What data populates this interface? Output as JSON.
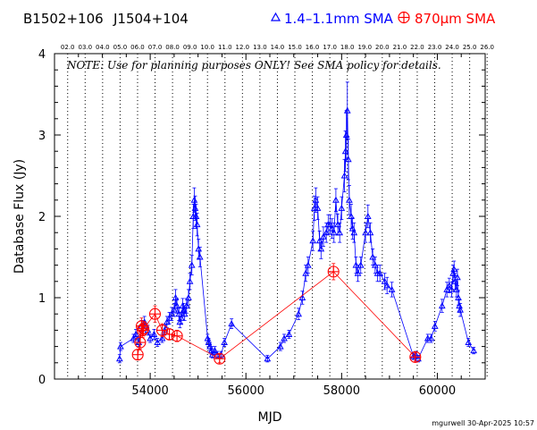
{
  "header": {
    "source_name": "B1502+106",
    "alt_name": "J1504+104",
    "legend": [
      {
        "label": "1.4–1.1mm SMA",
        "color": "#0000ff",
        "marker": "triangle"
      },
      {
        "label": "870μm SMA",
        "color": "#ff0000",
        "marker": "circle-plus"
      }
    ]
  },
  "note": "NOTE: Use for planning purposes ONLY! See SMA policy for details.",
  "footer": "mgurwell 30-Apr-2025 10:57",
  "chart_data": {
    "type": "scatter",
    "xlabel": "MJD",
    "ylabel": "Database Flux (Jy)",
    "xlim": [
      52000,
      61000
    ],
    "ylim": [
      0,
      4
    ],
    "x_ticks": [
      54000,
      56000,
      58000,
      60000
    ],
    "y_ticks": [
      0,
      1,
      2,
      3,
      4
    ],
    "top_axis_labels": [
      "02.0",
      "03.0",
      "04.0",
      "05.0",
      "06.0",
      "07.0",
      "08.0",
      "09.0",
      "10.0",
      "11.0",
      "12.0",
      "13.0",
      "14.0",
      "15.0",
      "16.0",
      "17.0",
      "18.0",
      "19.0",
      "20.0",
      "21.0",
      "22.0",
      "23.0",
      "24.0",
      "25.0",
      "26.0"
    ],
    "top_axis_start_mjd": 52275,
    "top_axis_step_days": 365.25,
    "grid": "vertical dotted lines at year boundaries",
    "series": [
      {
        "name": "1.4–1.1mm SMA",
        "color": "#0000ff",
        "marker": "triangle",
        "points": [
          [
            53360,
            0.25,
            0.05
          ],
          [
            53380,
            0.4,
            0.05
          ],
          [
            53650,
            0.5,
            0.05
          ],
          [
            53700,
            0.55,
            0.06
          ],
          [
            53760,
            0.45,
            0.05
          ],
          [
            53820,
            0.65,
            0.07
          ],
          [
            53880,
            0.7,
            0.07
          ],
          [
            53950,
            0.6,
            0.06
          ],
          [
            54000,
            0.5,
            0.05
          ],
          [
            54080,
            0.55,
            0.06
          ],
          [
            54150,
            0.45,
            0.05
          ],
          [
            54250,
            0.5,
            0.05
          ],
          [
            54300,
            0.6,
            0.06
          ],
          [
            54350,
            0.7,
            0.07
          ],
          [
            54400,
            0.75,
            0.07
          ],
          [
            54450,
            0.8,
            0.08
          ],
          [
            54500,
            0.85,
            0.08
          ],
          [
            54530,
            1.0,
            0.1
          ],
          [
            54560,
            0.9,
            0.09
          ],
          [
            54600,
            0.8,
            0.08
          ],
          [
            54620,
            0.7,
            0.07
          ],
          [
            54650,
            0.75,
            0.07
          ],
          [
            54680,
            0.9,
            0.09
          ],
          [
            54700,
            0.85,
            0.08
          ],
          [
            54720,
            0.8,
            0.08
          ],
          [
            54760,
            0.9,
            0.09
          ],
          [
            54800,
            1.0,
            0.1
          ],
          [
            54830,
            1.2,
            0.1
          ],
          [
            54870,
            1.4,
            0.12
          ],
          [
            54900,
            2.0,
            0.15
          ],
          [
            54920,
            2.2,
            0.15
          ],
          [
            54940,
            2.1,
            0.15
          ],
          [
            54960,
            2.0,
            0.15
          ],
          [
            54980,
            1.9,
            0.14
          ],
          [
            55010,
            1.6,
            0.12
          ],
          [
            55040,
            1.5,
            0.12
          ],
          [
            55200,
            0.5,
            0.05
          ],
          [
            55220,
            0.45,
            0.05
          ],
          [
            55250,
            0.4,
            0.05
          ],
          [
            55280,
            0.35,
            0.05
          ],
          [
            55300,
            0.3,
            0.04
          ],
          [
            55350,
            0.35,
            0.05
          ],
          [
            55400,
            0.3,
            0.04
          ],
          [
            55480,
            0.3,
            0.04
          ],
          [
            55550,
            0.45,
            0.05
          ],
          [
            55700,
            0.68,
            0.06
          ],
          [
            56450,
            0.25,
            0.04
          ],
          [
            56720,
            0.4,
            0.05
          ],
          [
            56800,
            0.5,
            0.05
          ],
          [
            56900,
            0.55,
            0.05
          ],
          [
            57100,
            0.8,
            0.07
          ],
          [
            57180,
            1.0,
            0.08
          ],
          [
            57250,
            1.3,
            0.1
          ],
          [
            57300,
            1.4,
            0.1
          ],
          [
            57400,
            1.7,
            0.12
          ],
          [
            57430,
            2.1,
            0.15
          ],
          [
            57460,
            2.2,
            0.15
          ],
          [
            57500,
            2.1,
            0.14
          ],
          [
            57540,
            1.7,
            0.12
          ],
          [
            57570,
            1.6,
            0.12
          ],
          [
            57620,
            1.75,
            0.12
          ],
          [
            57680,
            1.8,
            0.12
          ],
          [
            57720,
            1.9,
            0.12
          ],
          [
            57760,
            1.9,
            0.12
          ],
          [
            57800,
            1.85,
            0.12
          ],
          [
            57840,
            1.8,
            0.12
          ],
          [
            57880,
            2.2,
            0.14
          ],
          [
            57920,
            1.9,
            0.13
          ],
          [
            57960,
            1.8,
            0.12
          ],
          [
            58000,
            2.1,
            0.14
          ],
          [
            58060,
            2.5,
            0.2
          ],
          [
            58080,
            2.8,
            0.25
          ],
          [
            58100,
            3.0,
            0.3
          ],
          [
            58120,
            3.3,
            0.35
          ],
          [
            58140,
            2.7,
            0.25
          ],
          [
            58160,
            2.2,
            0.18
          ],
          [
            58200,
            2.0,
            0.15
          ],
          [
            58230,
            1.85,
            0.13
          ],
          [
            58260,
            1.8,
            0.12
          ],
          [
            58300,
            1.4,
            0.1
          ],
          [
            58340,
            1.3,
            0.1
          ],
          [
            58400,
            1.4,
            0.1
          ],
          [
            58500,
            1.8,
            0.12
          ],
          [
            58550,
            2.0,
            0.14
          ],
          [
            58600,
            1.8,
            0.12
          ],
          [
            58650,
            1.5,
            0.1
          ],
          [
            58700,
            1.4,
            0.1
          ],
          [
            58750,
            1.3,
            0.1
          ],
          [
            58800,
            1.3,
            0.1
          ],
          [
            58900,
            1.2,
            0.1
          ],
          [
            58950,
            1.15,
            0.1
          ],
          [
            59050,
            1.1,
            0.09
          ],
          [
            59500,
            0.28,
            0.04
          ],
          [
            59550,
            0.3,
            0.04
          ],
          [
            59600,
            0.25,
            0.04
          ],
          [
            59800,
            0.5,
            0.05
          ],
          [
            59870,
            0.5,
            0.05
          ],
          [
            59950,
            0.65,
            0.06
          ],
          [
            60100,
            0.9,
            0.08
          ],
          [
            60200,
            1.1,
            0.09
          ],
          [
            60250,
            1.15,
            0.09
          ],
          [
            60300,
            1.1,
            0.09
          ],
          [
            60330,
            1.3,
            0.1
          ],
          [
            60350,
            1.35,
            0.1
          ],
          [
            60370,
            1.2,
            0.1
          ],
          [
            60400,
            1.1,
            0.09
          ],
          [
            60420,
            1.25,
            0.1
          ],
          [
            60440,
            1.0,
            0.09
          ],
          [
            60460,
            0.9,
            0.08
          ],
          [
            60480,
            0.85,
            0.08
          ],
          [
            60650,
            0.45,
            0.05
          ],
          [
            60760,
            0.35,
            0.04
          ]
        ]
      },
      {
        "name": "870μm SMA",
        "color": "#ff0000",
        "marker": "circle-plus",
        "points": [
          [
            53740,
            0.3,
            0.06
          ],
          [
            53790,
            0.45,
            0.08
          ],
          [
            53820,
            0.65,
            0.1
          ],
          [
            53840,
            0.6,
            0.09
          ],
          [
            53860,
            0.62,
            0.09
          ],
          [
            54100,
            0.8,
            0.1
          ],
          [
            54250,
            0.6,
            0.08
          ],
          [
            54400,
            0.55,
            0.07
          ],
          [
            54560,
            0.53,
            0.07
          ],
          [
            55450,
            0.25,
            0.05
          ],
          [
            57830,
            1.32,
            0.1
          ],
          [
            59540,
            0.27,
            0.05
          ]
        ]
      }
    ]
  }
}
